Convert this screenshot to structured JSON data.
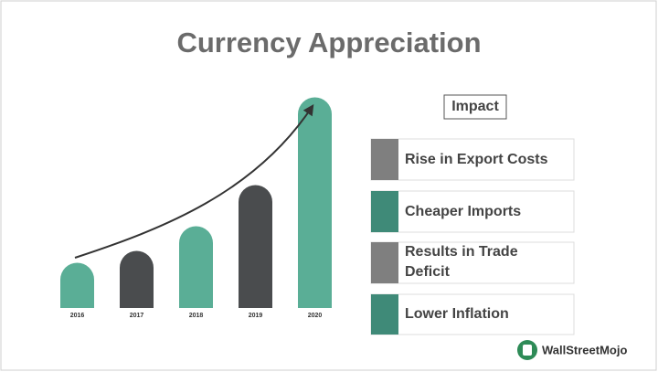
{
  "header": {
    "title": "Currency Appreciation"
  },
  "years": [
    "2016",
    "2017",
    "2018",
    "2019",
    "2020"
  ],
  "impact": {
    "heading": "Impact",
    "items": [
      "Rise in Export Costs",
      "Cheaper Imports",
      "Results in Trade",
      "Deficit",
      "Lower Inflation"
    ]
  },
  "logo": {
    "text": "WallStreetMojo"
  }
}
